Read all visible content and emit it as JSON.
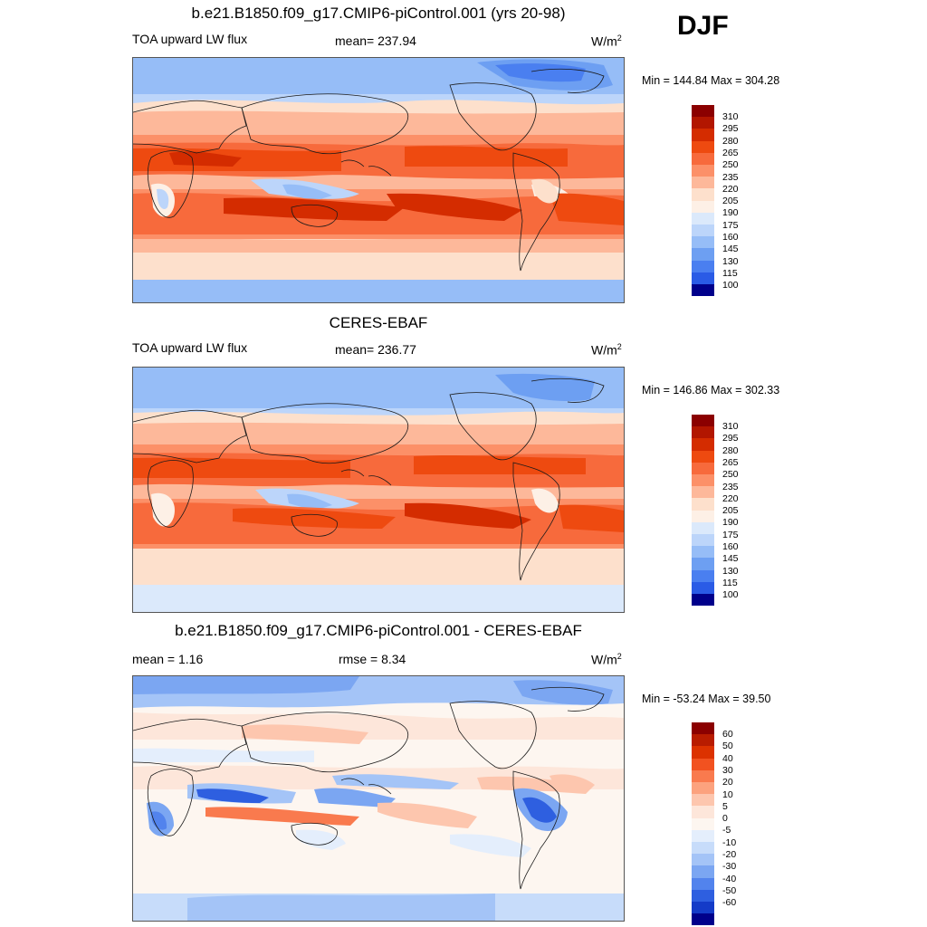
{
  "season": "DJF",
  "panels": [
    {
      "title": "b.e21.B1850.f09_g17.CMIP6-piControl.001 (yrs 20-98)",
      "left_label": "TOA upward LW flux",
      "center_label": "mean= 237.94",
      "units": "W/m",
      "units_sup": "2",
      "minmax": "Min = 144.84 Max = 304.28",
      "colorbar_ticks": [
        "310",
        "295",
        "280",
        "265",
        "250",
        "235",
        "220",
        "205",
        "190",
        "175",
        "160",
        "145",
        "130",
        "115",
        "100"
      ]
    },
    {
      "title": "CERES-EBAF",
      "left_label": "TOA upward LW flux",
      "center_label": "mean= 236.77",
      "units": "W/m",
      "units_sup": "2",
      "minmax": "Min = 146.86 Max = 302.33",
      "colorbar_ticks": [
        "310",
        "295",
        "280",
        "265",
        "250",
        "235",
        "220",
        "205",
        "190",
        "175",
        "160",
        "145",
        "130",
        "115",
        "100"
      ]
    },
    {
      "title": "b.e21.B1850.f09_g17.CMIP6-piControl.001 - CERES-EBAF",
      "left_label": "mean =   1.16",
      "center_label": "rmse =   8.34",
      "units": "W/m",
      "units_sup": "2",
      "minmax": "Min = -53.24 Max =  39.50",
      "colorbar_ticks": [
        "60",
        "50",
        "40",
        "30",
        "20",
        "10",
        "5",
        "0",
        "-5",
        "-10",
        "-20",
        "-30",
        "-40",
        "-50",
        "-60"
      ]
    }
  ],
  "colors": {
    "abs_scale": [
      "#8b0000",
      "#b21600",
      "#d42c00",
      "#ee4a10",
      "#f76a3c",
      "#fc9068",
      "#fdb89a",
      "#fde0cc",
      "#fdf0e6",
      "#dbe9fb",
      "#bcd5fa",
      "#96bdf7",
      "#6d9ff2",
      "#4a7ff0",
      "#2a5be6",
      "#1437d0",
      "#0a1fa8",
      "#00008b"
    ],
    "diff_scale": [
      "#8b0000",
      "#b81c00",
      "#dc3200",
      "#f25220",
      "#f97a4e",
      "#fca27e",
      "#fdc6ae",
      "#fde6da",
      "#fdf6f0",
      "#e4eefc",
      "#c7dcfa",
      "#a4c4f7",
      "#7ba6f2",
      "#5283ed",
      "#2e5fe0",
      "#143bc8",
      "#00008b"
    ],
    "land_line": "#1a1a1a"
  }
}
